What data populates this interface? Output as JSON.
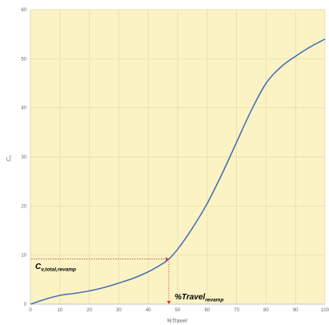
{
  "chart_data": {
    "type": "line",
    "title": "",
    "xlabel": "%Travel",
    "ylabel": "Cv",
    "xlim": [
      0,
      100
    ],
    "ylim": [
      0,
      60
    ],
    "x_ticks": [
      0,
      10,
      20,
      30,
      40,
      50,
      60,
      70,
      80,
      90,
      100
    ],
    "y_ticks": [
      0,
      10,
      20,
      30,
      40,
      50,
      60
    ],
    "grid": true,
    "colors": {
      "plot_bg": "#fbf3c4",
      "grid": "#e3dbae",
      "line": "#4a72b4",
      "guide": "#e0343a",
      "text": "#666666"
    },
    "series": [
      {
        "x": [
          0,
          5,
          10,
          15,
          20,
          25,
          30,
          35,
          40,
          45,
          47,
          50,
          55,
          60,
          65,
          70,
          75,
          80,
          85,
          90,
          95,
          100
        ],
        "y": [
          0,
          1.0,
          1.8,
          2.2,
          2.7,
          3.4,
          4.3,
          5.3,
          6.6,
          8.3,
          9.2,
          11.2,
          15.5,
          20.5,
          26.5,
          33.0,
          39.5,
          45.0,
          48.3,
          50.5,
          52.4,
          54.0
        ]
      }
    ],
    "annotations": {
      "cv_label": {
        "main": "C",
        "sub": "v,total,revamp"
      },
      "travel_label": {
        "main": "%Travel",
        "sub": "revamp"
      },
      "guide_point": {
        "x": 47,
        "y": 9.2
      }
    }
  }
}
